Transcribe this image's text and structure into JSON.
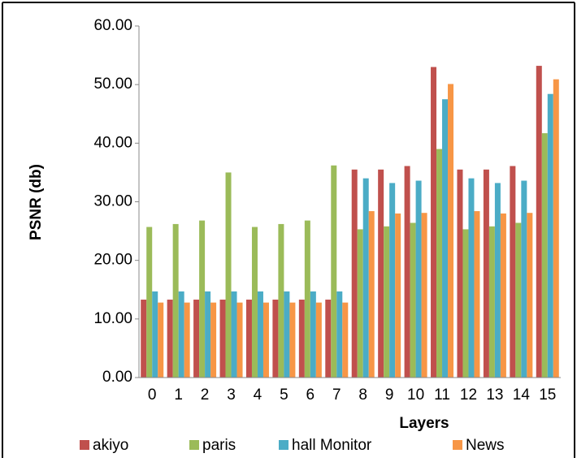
{
  "chart_data": {
    "type": "bar",
    "xlabel": "Layers",
    "ylabel": "PSNR (db)",
    "categories": [
      "0",
      "1",
      "2",
      "3",
      "4",
      "5",
      "6",
      "7",
      "8",
      "9",
      "10",
      "11",
      "12",
      "13",
      "14",
      "15"
    ],
    "series": [
      {
        "name": "akiyo",
        "color": "#c0504d",
        "values": [
          13.3,
          13.3,
          13.3,
          13.3,
          13.3,
          13.3,
          13.3,
          13.3,
          35.5,
          35.5,
          36.1,
          53.0,
          35.5,
          35.5,
          36.1,
          53.2
        ]
      },
      {
        "name": "paris",
        "color": "#9bbb59",
        "values": [
          25.7,
          26.2,
          26.8,
          35.0,
          25.7,
          26.2,
          26.8,
          36.2,
          25.3,
          25.8,
          26.4,
          39.0,
          25.3,
          25.8,
          26.4,
          41.7
        ]
      },
      {
        "name": "hall Monitor",
        "color": "#4bacc6",
        "values": [
          14.7,
          14.7,
          14.7,
          14.7,
          14.7,
          14.7,
          14.7,
          14.7,
          34.0,
          33.2,
          33.6,
          47.5,
          34.0,
          33.2,
          33.6,
          48.4
        ]
      },
      {
        "name": "News",
        "color": "#f79646",
        "values": [
          12.8,
          12.8,
          12.8,
          12.8,
          12.8,
          12.8,
          12.8,
          12.8,
          28.4,
          28.0,
          28.1,
          50.1,
          28.4,
          28.0,
          28.1,
          50.9
        ]
      }
    ],
    "ylim": [
      0,
      60
    ],
    "yticks": [
      {
        "value": 0,
        "label": "0.00"
      },
      {
        "value": 10,
        "label": "10.00"
      },
      {
        "value": 20,
        "label": "20.00"
      },
      {
        "value": 30,
        "label": "30.00"
      },
      {
        "value": 40,
        "label": "40.00"
      },
      {
        "value": 50,
        "label": "50.00"
      },
      {
        "value": 60,
        "label": "60.00"
      }
    ],
    "grid": false,
    "legend": "bottom"
  }
}
